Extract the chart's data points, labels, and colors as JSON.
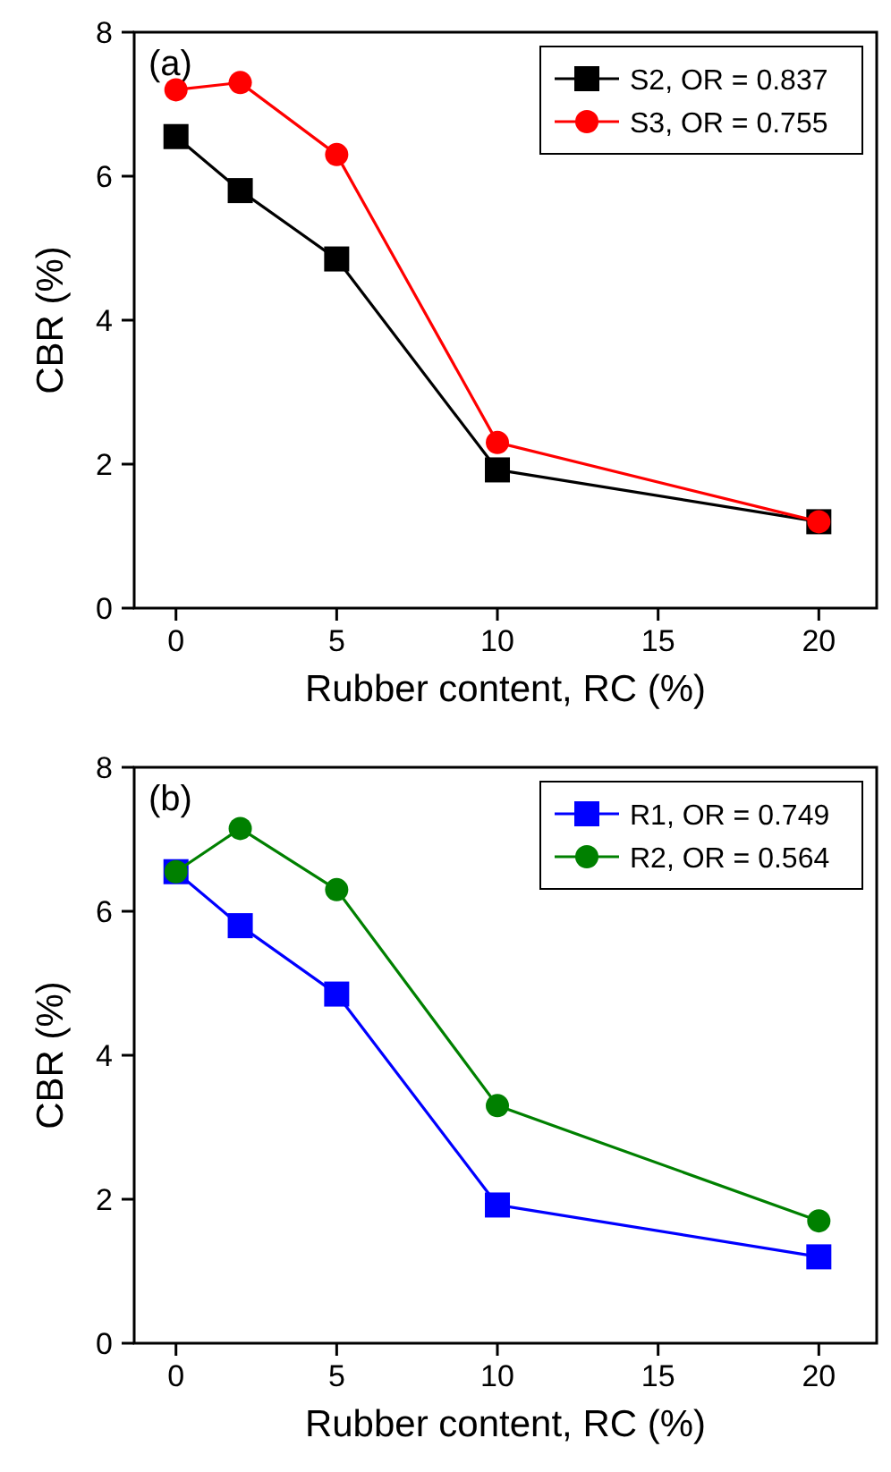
{
  "chart_data": [
    {
      "type": "line",
      "xlabel": "Rubber content, RC (%)",
      "ylabel": "CBR (%)",
      "annotations": [
        "(a)"
      ],
      "x": [
        0,
        2,
        5,
        10,
        20
      ],
      "xlim": [
        -1.3,
        21.8
      ],
      "xticks": [
        0,
        5,
        10,
        15,
        20
      ],
      "ylim": [
        0,
        8
      ],
      "yticks": [
        0,
        2,
        4,
        6,
        8
      ],
      "legend": "top right",
      "grid": false,
      "series": [
        {
          "name": "S2, OR = 0.837",
          "color": "#000000",
          "marker": "square",
          "values": [
            6.55,
            5.8,
            4.85,
            1.92,
            1.2
          ]
        },
        {
          "name": "S3, OR = 0.755",
          "color": "#ff0000",
          "marker": "circle",
          "values": [
            7.2,
            7.3,
            6.3,
            2.3,
            1.2
          ]
        }
      ]
    },
    {
      "type": "line",
      "xlabel": "Rubber content, RC (%)",
      "ylabel": "CBR (%)",
      "annotations": [
        "(b)"
      ],
      "x": [
        0,
        2,
        5,
        10,
        20
      ],
      "xlim": [
        -1.3,
        21.8
      ],
      "xticks": [
        0,
        5,
        10,
        15,
        20
      ],
      "ylim": [
        0,
        8
      ],
      "yticks": [
        0,
        2,
        4,
        6,
        8
      ],
      "legend": "top right",
      "grid": false,
      "series": [
        {
          "name": "R1, OR = 0.749",
          "color": "#0000ff",
          "marker": "square",
          "values": [
            6.55,
            5.8,
            4.85,
            1.92,
            1.2
          ]
        },
        {
          "name": "R2, OR = 0.564",
          "color": "#008000",
          "marker": "circle",
          "values": [
            6.55,
            7.15,
            6.3,
            3.3,
            1.7
          ]
        }
      ]
    }
  ]
}
